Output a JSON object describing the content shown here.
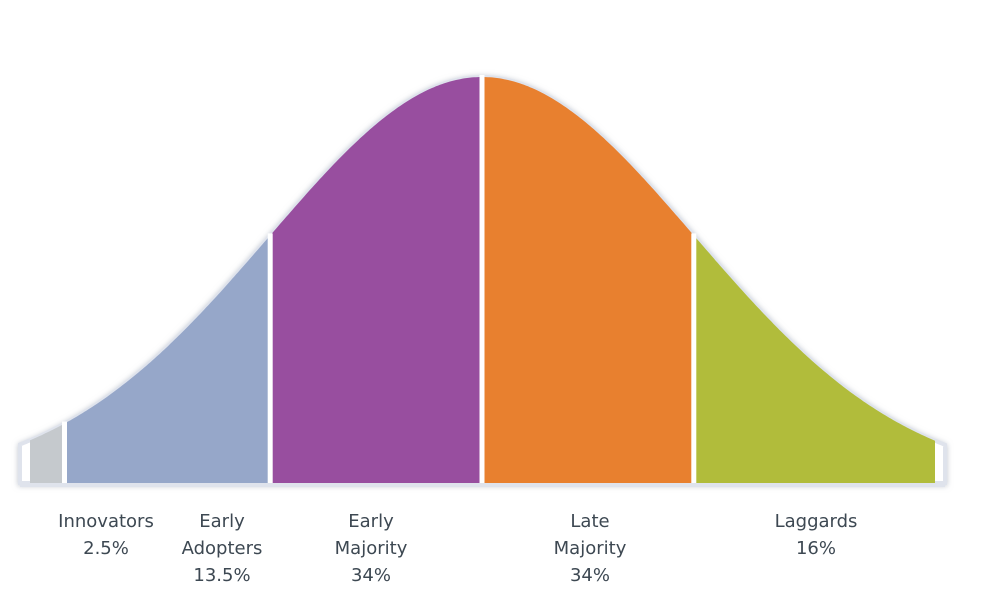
{
  "chart_data": {
    "type": "area",
    "title": "",
    "xlabel": "",
    "ylabel": "",
    "segments": [
      {
        "label_lines": [
          "Innovators",
          "2.5%"
        ],
        "name": "Innovators",
        "value": 2.5,
        "color": "#c5c9cd"
      },
      {
        "label_lines": [
          "Early",
          "Adopters",
          "13.5%"
        ],
        "name": "Early Adopters",
        "value": 13.5,
        "color": "#96a7c9"
      },
      {
        "label_lines": [
          "Early",
          "Majority",
          "34%"
        ],
        "name": "Early Majority",
        "value": 34,
        "color": "#984e9f"
      },
      {
        "label_lines": [
          "Late",
          "Majority",
          "34%"
        ],
        "name": "Late Majority",
        "value": 34,
        "color": "#e8802f"
      },
      {
        "label_lines": [
          "Laggards",
          "16%"
        ],
        "name": "Laggards",
        "value": 16,
        "color": "#b1bc3b"
      }
    ],
    "outline_color": "#dfe3ec"
  }
}
